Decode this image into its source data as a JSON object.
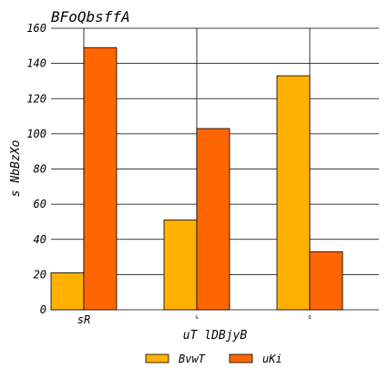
{
  "chart_data": {
    "type": "bar",
    "title": "BFoQbsffA",
    "xlabel": "uT lDBjyB",
    "ylabel": "s NbBzXo",
    "categories": [
      "sR",
      "G",
      "Q"
    ],
    "series": [
      {
        "name": "BvwT",
        "values": [
          21,
          51,
          133
        ],
        "color": "#ffb000"
      },
      {
        "name": "uKi",
        "values": [
          149,
          103,
          33
        ],
        "color": "#ff6600"
      }
    ],
    "ylim": [
      0,
      160
    ],
    "yticks": [
      0,
      20,
      40,
      60,
      80,
      100,
      120,
      140,
      160
    ],
    "grid": true,
    "legend_position": "bottom"
  }
}
